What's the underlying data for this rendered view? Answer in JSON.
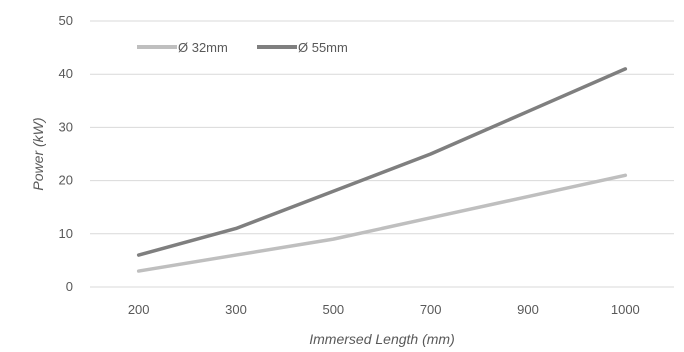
{
  "chart_data": {
    "type": "line",
    "categories": [
      "200",
      "300",
      "500",
      "700",
      "900",
      "1000"
    ],
    "series": [
      {
        "name": "Ø 32mm",
        "values": [
          3,
          6,
          9,
          13,
          17,
          21
        ],
        "color": "#BFBFBF"
      },
      {
        "name": "Ø 55mm",
        "values": [
          6,
          11,
          18,
          25,
          33,
          41
        ],
        "color": "#7F7F7F"
      }
    ],
    "title": "",
    "xlabel": "Immersed Length (mm)",
    "ylabel": "Power (kW)",
    "ylim": [
      0,
      50
    ],
    "yticks": [
      "0",
      "10",
      "20",
      "30",
      "40",
      "50"
    ],
    "grid": "horizontal",
    "legend_position": "top-left"
  }
}
